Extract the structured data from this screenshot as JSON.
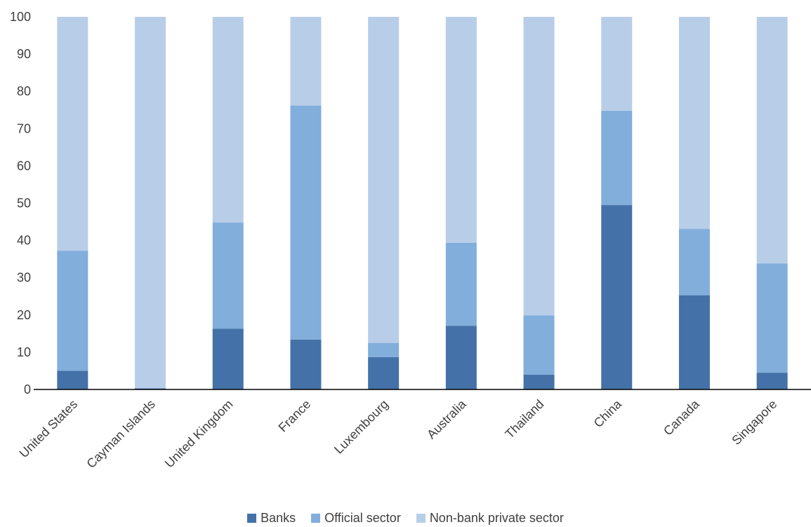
{
  "chart_data": {
    "type": "bar",
    "stacked": true,
    "categories": [
      "United States",
      "Cayman Islands",
      "United Kingdom",
      "France",
      "Luxembourg",
      "Australia",
      "Thailand",
      "China",
      "Canada",
      "Singapore"
    ],
    "series": [
      {
        "name": "Banks",
        "color": "#4472a8",
        "values": [
          5,
          0.3,
          16.3,
          13.4,
          8.7,
          17.1,
          4,
          49.5,
          25.3,
          4.5
        ]
      },
      {
        "name": "Official sector",
        "color": "#82aedc",
        "values": [
          32.2,
          0,
          28.5,
          62.8,
          3.8,
          22.3,
          15.9,
          25.3,
          17.8,
          29.3
        ]
      },
      {
        "name": "Non-bank private sector",
        "color": "#b8cde8",
        "values": [
          62.8,
          99.7,
          55.2,
          23.8,
          87.5,
          60.6,
          80.1,
          25.2,
          56.9,
          66.2
        ]
      }
    ],
    "ylim": [
      0,
      100
    ],
    "yticks": [
      "0",
      "10",
      "20",
      "30",
      "40",
      "50",
      "60",
      "70",
      "80",
      "90",
      "100"
    ],
    "grid": false,
    "legend_position": "bottom",
    "title": "",
    "xlabel": "",
    "ylabel": ""
  }
}
